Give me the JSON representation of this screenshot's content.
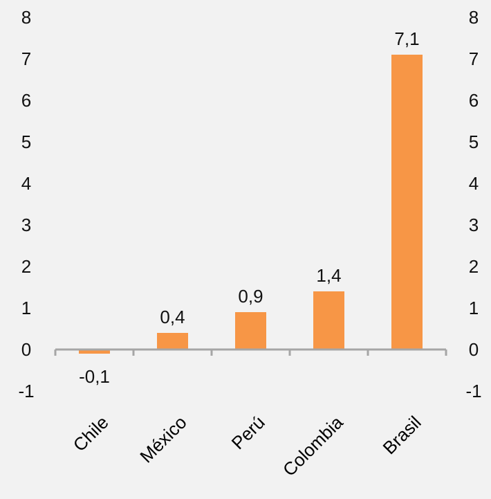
{
  "chart_data": {
    "type": "bar",
    "categories": [
      "Chile",
      "México",
      "Perú",
      "Colombia",
      "Brasil"
    ],
    "values": [
      -0.1,
      0.4,
      0.9,
      1.4,
      7.1
    ],
    "data_labels": [
      "-0,1",
      "0,4",
      "0,9",
      "1,4",
      "7,1"
    ],
    "ylim": [
      -1,
      8
    ],
    "yticks": [
      "-1",
      "0",
      "1",
      "2",
      "3",
      "4",
      "5",
      "6",
      "7",
      "8"
    ],
    "secondary_axis": true,
    "grid": false,
    "legend": "none",
    "bar_color": "#f79646",
    "axis_color": "#a6a6a6"
  }
}
